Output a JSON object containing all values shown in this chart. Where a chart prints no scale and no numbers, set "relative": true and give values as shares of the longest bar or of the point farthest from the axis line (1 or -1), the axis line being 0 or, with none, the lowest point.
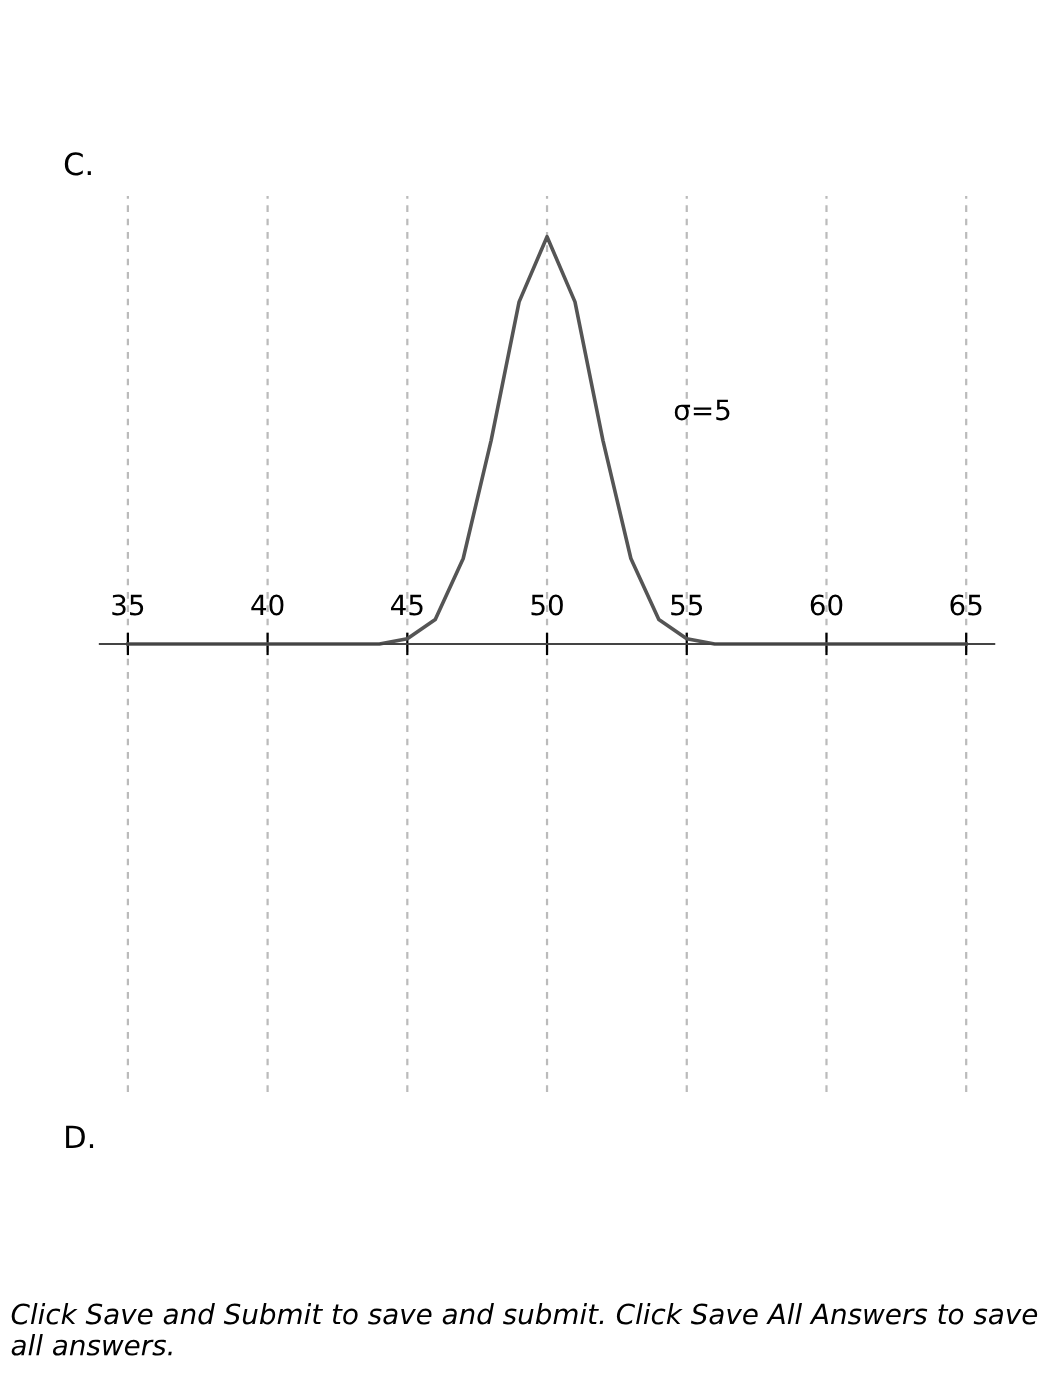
{
  "chart_data": {
    "type": "line",
    "title": "C.",
    "relative": true,
    "x": [
      35,
      43,
      44,
      45,
      46,
      47,
      48,
      49,
      50,
      51,
      52,
      53,
      54,
      55,
      56,
      57,
      65
    ],
    "series": [
      {
        "color": "#555555",
        "values": [
          0,
          0,
          0,
          0.013,
          0.06,
          0.21,
          0.5,
          0.84,
          1,
          0.84,
          0.5,
          0.21,
          0.06,
          0.013,
          0,
          0,
          0
        ]
      }
    ],
    "xlim": [
      34,
      66
    ],
    "xticks": [
      35,
      40,
      45,
      50,
      55,
      60,
      65
    ],
    "grid": "x",
    "marker": "none",
    "line_style": "solid",
    "annotations": [
      "σ=5",
      "D.",
      "Click Save and Submit to save and submit. Click Save All Answers to save all answers."
    ]
  }
}
